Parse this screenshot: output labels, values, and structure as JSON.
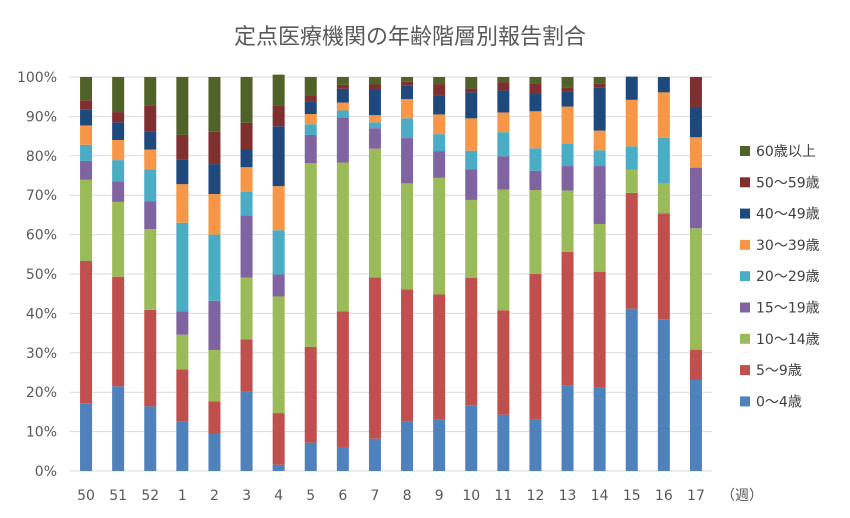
{
  "chart_data": {
    "type": "bar",
    "stacked": true,
    "normalized": true,
    "title": "定点医療機関の年齢階層別報告割合",
    "xlabel": "（週）",
    "ylabel": "",
    "ylim": [
      0,
      100
    ],
    "yticks": [
      "0%",
      "10%",
      "20%",
      "30%",
      "40%",
      "50%",
      "60%",
      "70%",
      "80%",
      "90%",
      "100%"
    ],
    "grid": true,
    "legend_position": "right",
    "categories": [
      "50",
      "51",
      "52",
      "1",
      "2",
      "3",
      "4",
      "5",
      "6",
      "7",
      "8",
      "9",
      "10",
      "11",
      "12",
      "13",
      "14",
      "15",
      "16",
      "17"
    ],
    "series": [
      {
        "name": "0～4歳",
        "color": "#4f81bd",
        "values": [
          17.2,
          21.5,
          16.4,
          12.5,
          9.4,
          20.2,
          1.6,
          7.2,
          6.1,
          8.2,
          12.6,
          13.0,
          16.7,
          14.3,
          13.1,
          21.8,
          21.3,
          41.2,
          38.5,
          23.1
        ]
      },
      {
        "name": "5～9歳",
        "color": "#c0504d",
        "values": [
          36.1,
          27.8,
          24.5,
          13.3,
          8.3,
          13.2,
          13.1,
          24.3,
          34.4,
          40.9,
          33.5,
          31.8,
          32.3,
          26.5,
          36.9,
          33.8,
          29.3,
          29.4,
          26.9,
          7.7
        ]
      },
      {
        "name": "10～14歳",
        "color": "#9bbb59",
        "values": [
          20.6,
          19.0,
          20.5,
          8.8,
          13.0,
          15.7,
          29.6,
          46.6,
          37.8,
          32.7,
          26.9,
          29.6,
          19.8,
          30.6,
          21.3,
          15.6,
          12.1,
          5.9,
          7.7,
          30.8
        ]
      },
      {
        "name": "15～19歳",
        "color": "#8064a2",
        "values": [
          4.8,
          5.2,
          7.0,
          5.9,
          12.5,
          15.8,
          5.6,
          7.2,
          11.4,
          5.2,
          11.5,
          6.8,
          7.8,
          8.5,
          4.9,
          6.2,
          14.7,
          0.0,
          0.0,
          15.4
        ]
      },
      {
        "name": "20～29歳",
        "color": "#4bacc6",
        "values": [
          4.1,
          5.4,
          8.2,
          22.5,
          16.8,
          6.0,
          11.2,
          2.7,
          1.8,
          1.5,
          5.0,
          4.3,
          4.7,
          6.1,
          5.7,
          5.6,
          4.0,
          5.9,
          11.5,
          0.0
        ]
      },
      {
        "name": "30～39歳",
        "color": "#f79646",
        "values": [
          4.9,
          5.1,
          5.0,
          9.8,
          10.3,
          6.2,
          11.2,
          2.6,
          2.0,
          1.8,
          4.9,
          5.0,
          8.2,
          5.0,
          9.4,
          9.5,
          5.0,
          11.8,
          11.5,
          7.7
        ]
      },
      {
        "name": "40～49歳",
        "color": "#1f497d",
        "values": [
          4.0,
          4.5,
          4.6,
          6.3,
          7.6,
          4.5,
          15.2,
          3.2,
          3.5,
          6.4,
          3.4,
          4.9,
          6.6,
          5.6,
          4.5,
          3.8,
          10.9,
          5.9,
          3.9,
          7.7
        ]
      },
      {
        "name": "50～59歳",
        "color": "#7f2f2d",
        "values": [
          2.4,
          2.6,
          6.6,
          6.2,
          8.2,
          6.8,
          5.3,
          1.6,
          1.0,
          1.4,
          1.0,
          2.8,
          1.0,
          2.1,
          2.6,
          1.1,
          1.1,
          0.0,
          0.0,
          7.6
        ]
      },
      {
        "name": "60歳以上",
        "color": "#4f6228",
        "values": [
          5.9,
          8.9,
          7.2,
          14.7,
          13.9,
          11.6,
          7.8,
          4.6,
          2.0,
          1.9,
          1.2,
          1.8,
          2.9,
          1.3,
          1.6,
          2.6,
          1.6,
          0.0,
          0.0,
          0.0
        ]
      }
    ]
  }
}
